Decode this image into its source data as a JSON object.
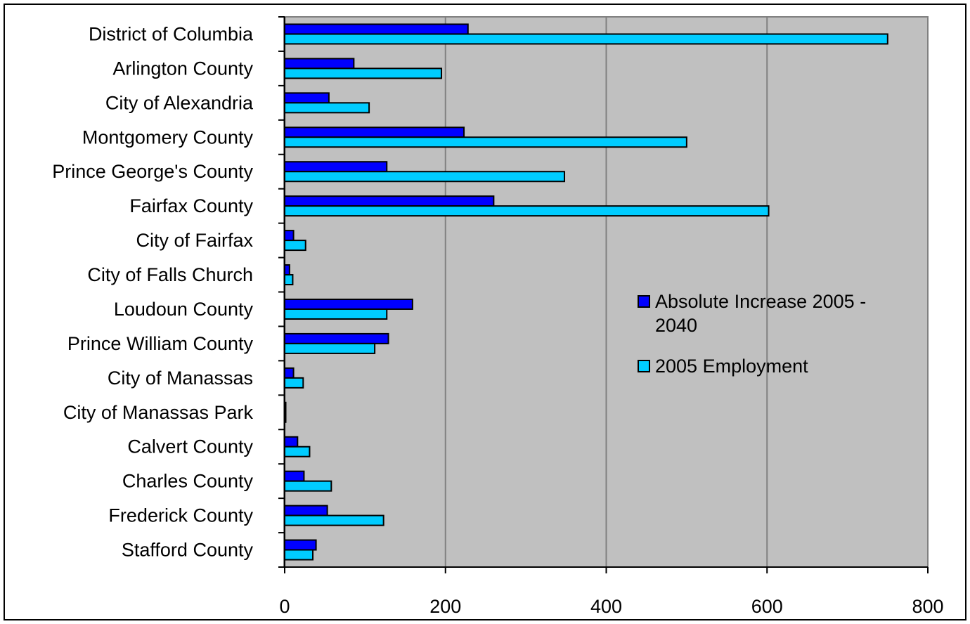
{
  "chart_data": {
    "type": "bar",
    "orientation": "horizontal",
    "categories": [
      "District of Columbia",
      "Arlington County",
      "City of Alexandria",
      "Montgomery County",
      "Prince George's County",
      "Fairfax County",
      "City of Fairfax",
      "City of Falls Church",
      "Loudoun County",
      "Prince William County",
      "City of Manassas",
      "City of Manassas Park",
      "Calvert County",
      "Charles County",
      "Frederick County",
      "Stafford County"
    ],
    "series": [
      {
        "name": "Absolute Increase 2005 - 2040",
        "color": "#0000FF",
        "values": [
          228,
          86,
          55,
          223,
          127,
          260,
          11,
          6,
          159,
          129,
          11,
          1,
          16,
          24,
          53,
          39
        ]
      },
      {
        "name": "2005 Employment",
        "color": "#00CCFF",
        "values": [
          750,
          195,
          105,
          500,
          348,
          602,
          26,
          10,
          127,
          112,
          23,
          1,
          31,
          58,
          123,
          35
        ]
      }
    ],
    "xlim": [
      0,
      800
    ],
    "x_ticks": [
      "0",
      "200",
      "400",
      "600",
      "800"
    ],
    "grid": true,
    "plot_background": "#C0C0C0",
    "legend": {
      "placement": "right",
      "items": [
        {
          "lines": [
            "Absolute Increase 2005 -",
            "2040"
          ],
          "color": "#0000FF"
        },
        {
          "lines": [
            "2005 Employment"
          ],
          "color": "#00CCFF"
        }
      ]
    }
  }
}
